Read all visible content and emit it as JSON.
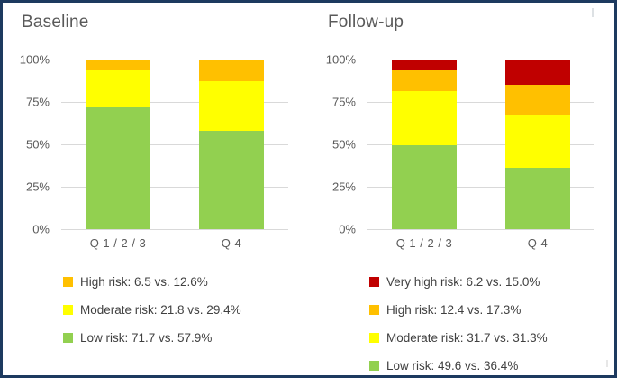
{
  "frame": {
    "border_color": "#1d3a5f",
    "background": "#ffffff",
    "gridline_color": "#d9d9d9",
    "text_color": "#595959",
    "legend_text_color": "#404040"
  },
  "chart_data": [
    {
      "type": "bar",
      "stacked": true,
      "title": "Baseline",
      "categories": [
        "Q 1 / 2 / 3",
        "Q 4"
      ],
      "series": [
        {
          "name": "Low risk",
          "color": "#92d050",
          "values": [
            71.7,
            57.9
          ]
        },
        {
          "name": "Moderate risk",
          "color": "#ffff00",
          "values": [
            21.8,
            29.4
          ]
        },
        {
          "name": "High risk",
          "color": "#ffc000",
          "values": [
            6.5,
            12.6
          ]
        }
      ],
      "xlabel": "",
      "ylabel": "",
      "ylim": [
        0,
        100
      ],
      "y_ticks": [
        "100%",
        "75%",
        "50%",
        "25%",
        "0%"
      ],
      "grid": true,
      "legend_position": "bottom",
      "legend": [
        {
          "color": "#ffc000",
          "label": "High risk: 6.5 vs. 12.6%"
        },
        {
          "color": "#ffff00",
          "label": "Moderate risk: 21.8 vs. 29.4%"
        },
        {
          "color": "#92d050",
          "label": "Low risk: 71.7 vs. 57.9%"
        }
      ]
    },
    {
      "type": "bar",
      "stacked": true,
      "title": "Follow-up",
      "categories": [
        "Q 1 / 2 / 3",
        "Q 4"
      ],
      "series": [
        {
          "name": "Low risk",
          "color": "#92d050",
          "values": [
            49.6,
            36.4
          ]
        },
        {
          "name": "Moderate risk",
          "color": "#ffff00",
          "values": [
            31.7,
            31.3
          ]
        },
        {
          "name": "High risk",
          "color": "#ffc000",
          "values": [
            12.4,
            17.3
          ]
        },
        {
          "name": "Very high risk",
          "color": "#c00000",
          "values": [
            6.2,
            15.0
          ]
        }
      ],
      "xlabel": "",
      "ylabel": "",
      "ylim": [
        0,
        100
      ],
      "y_ticks": [
        "100%",
        "75%",
        "50%",
        "25%",
        "0%"
      ],
      "grid": true,
      "legend_position": "bottom",
      "legend": [
        {
          "color": "#c00000",
          "label": "Very high risk: 6.2 vs. 15.0%"
        },
        {
          "color": "#ffc000",
          "label": "High risk: 12.4 vs. 17.3%"
        },
        {
          "color": "#ffff00",
          "label": "Moderate risk: 31.7 vs. 31.3%"
        },
        {
          "color": "#92d050",
          "label": "Low risk: 49.6 vs. 36.4%"
        }
      ]
    }
  ]
}
